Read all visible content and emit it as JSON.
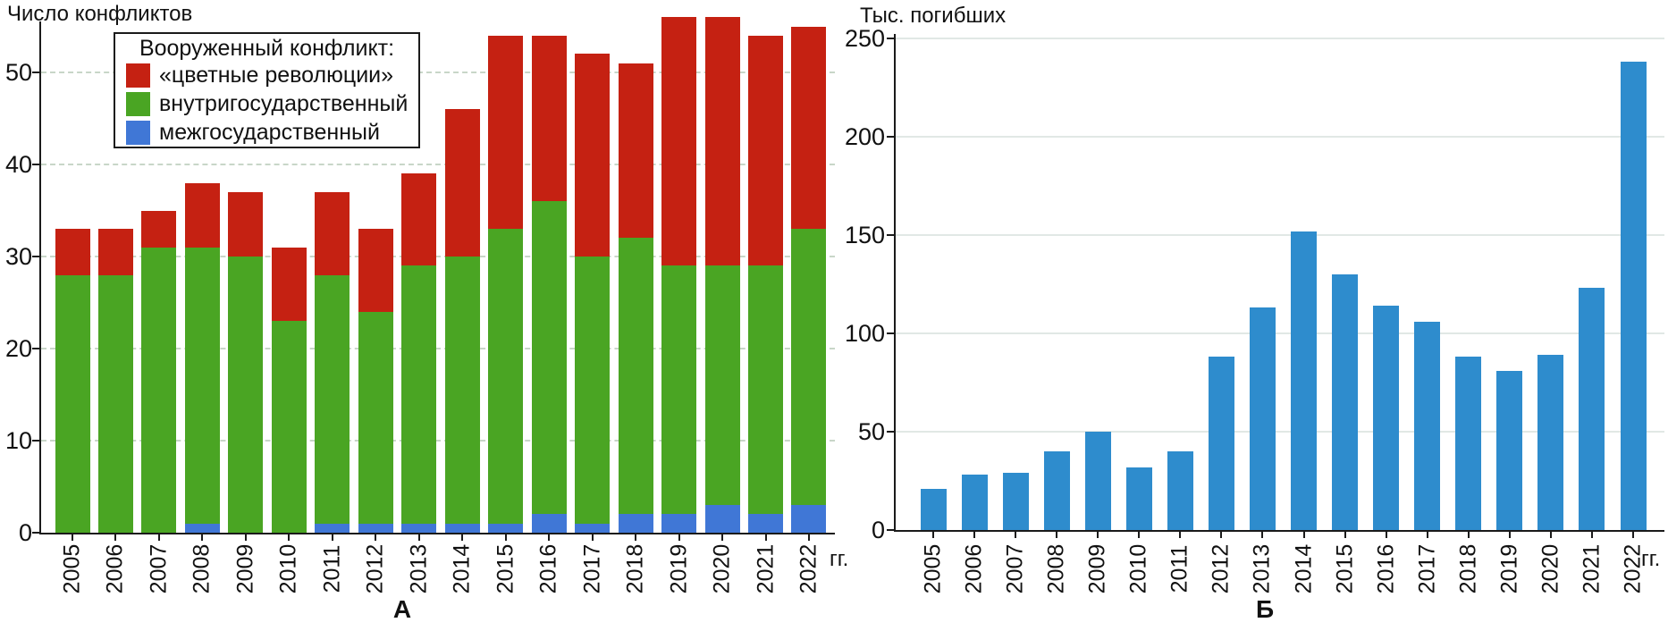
{
  "page": {
    "background": "#ffffff"
  },
  "chart_data": [
    {
      "id": "A",
      "type": "bar",
      "stacked": true,
      "title": "Число конфликтов",
      "panel_label": "А",
      "x_axis_suffix": "гг.",
      "legend_title": "Вооруженный конфликт:",
      "legend_order": [
        "«цветные революции»",
        "внутригосударственный",
        "межгосударственный"
      ],
      "categories": [
        "2005",
        "2006",
        "2007",
        "2008",
        "2009",
        "2010",
        "2011",
        "2012",
        "2013",
        "2014",
        "2015",
        "2016",
        "2017",
        "2018",
        "2019",
        "2020",
        "2021",
        "2022"
      ],
      "series": [
        {
          "name": "межгосударственный",
          "color": "#4077d6",
          "values": [
            0,
            0,
            0,
            1,
            0,
            0,
            1,
            1,
            1,
            1,
            1,
            2,
            1,
            2,
            2,
            3,
            2,
            3
          ]
        },
        {
          "name": "внутригосударственный",
          "color": "#4aa523",
          "values": [
            28,
            28,
            31,
            30,
            30,
            23,
            27,
            23,
            28,
            29,
            32,
            34,
            29,
            30,
            27,
            26,
            27,
            30
          ]
        },
        {
          "name": "«цветные революции»",
          "color": "#c52112",
          "values": [
            5,
            5,
            4,
            7,
            7,
            8,
            9,
            9,
            10,
            16,
            21,
            18,
            22,
            19,
            27,
            27,
            25,
            22
          ]
        }
      ],
      "totals": [
        33,
        33,
        35,
        38,
        37,
        31,
        37,
        33,
        39,
        46,
        54,
        54,
        52,
        51,
        56,
        56,
        54,
        55
      ],
      "yticks": [
        0,
        10,
        20,
        30,
        40,
        50
      ],
      "ylim": [
        0,
        56
      ],
      "grid_style": "dashed",
      "grid_color": "#c8d6c8",
      "axis_color": "#1a1a1a",
      "legend_position": "upper-left"
    },
    {
      "id": "B",
      "type": "bar",
      "stacked": false,
      "title": "Тыс. погибших",
      "panel_label": "Б",
      "x_axis_suffix": "гг.",
      "categories": [
        "2005",
        "2006",
        "2007",
        "2008",
        "2009",
        "2010",
        "2011",
        "2012",
        "2013",
        "2014",
        "2015",
        "2016",
        "2017",
        "2018",
        "2019",
        "2020",
        "2021",
        "2022"
      ],
      "series": [
        {
          "name": "Тыс. погибших",
          "color": "#2e8ccd",
          "values": [
            21,
            28,
            29,
            40,
            50,
            32,
            40,
            88,
            113,
            152,
            130,
            114,
            106,
            88,
            81,
            89,
            123,
            238
          ]
        }
      ],
      "yticks": [
        0,
        50,
        100,
        150,
        200,
        250
      ],
      "ylim": [
        0,
        250
      ],
      "grid_style": "solid",
      "grid_color": "#e1e8e5",
      "axis_color": "#1a1a1a",
      "legend_position": "none"
    }
  ]
}
